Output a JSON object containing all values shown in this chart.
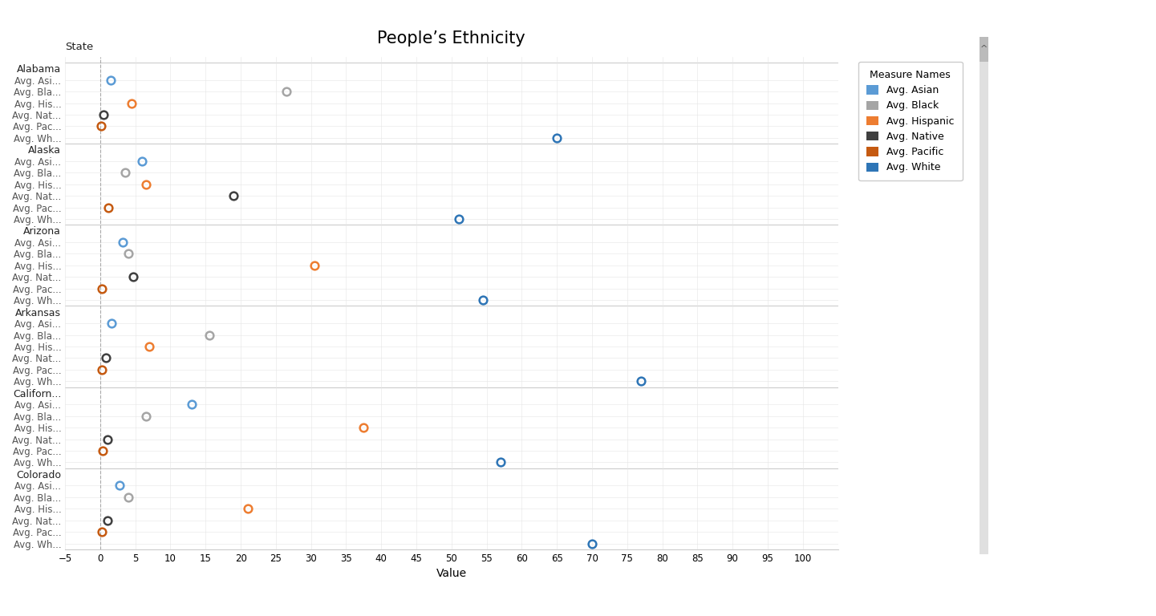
{
  "title": "People’s Ethnicity",
  "xlabel": "Value",
  "xlim": [
    -5,
    105
  ],
  "xticks": [
    -5,
    0,
    5,
    10,
    15,
    20,
    25,
    30,
    35,
    40,
    45,
    50,
    55,
    60,
    65,
    70,
    75,
    80,
    85,
    90,
    95,
    100
  ],
  "measures": [
    "Avg. Asian",
    "Avg. Black",
    "Avg. Hispanic",
    "Avg. Native",
    "Avg. Pacific",
    "Avg. White"
  ],
  "measure_labels": [
    "Avg. Asi...",
    "Avg. Bla...",
    "Avg. His...",
    "Avg. Nat...",
    "Avg. Pac...",
    "Avg. Wh..."
  ],
  "colors": {
    "Avg. Asian": "#5B9BD5",
    "Avg. Black": "#A5A5A5",
    "Avg. Hispanic": "#ED7D31",
    "Avg. Native": "#404040",
    "Avg. Pacific": "#C55A11",
    "Avg. White": "#2E75B6"
  },
  "data": {
    "Alabama": {
      "Avg. Asian": 1.5,
      "Avg. Black": 26.5,
      "Avg. Hispanic": 4.5,
      "Avg. Native": 0.5,
      "Avg. Pacific": 0.1,
      "Avg. White": 65.0
    },
    "Alaska": {
      "Avg. Asian": 6.0,
      "Avg. Black": 3.5,
      "Avg. Hispanic": 6.5,
      "Avg. Native": 19.0,
      "Avg. Pacific": 1.2,
      "Avg. White": 51.0
    },
    "Arizona": {
      "Avg. Asian": 3.2,
      "Avg. Black": 4.0,
      "Avg. Hispanic": 30.5,
      "Avg. Native": 4.7,
      "Avg. Pacific": 0.2,
      "Avg. White": 54.5
    },
    "Arkansas": {
      "Avg. Asian": 1.6,
      "Avg. Black": 15.5,
      "Avg. Hispanic": 7.0,
      "Avg. Native": 0.8,
      "Avg. Pacific": 0.2,
      "Avg. White": 77.0
    },
    "Californ...": {
      "Avg. Asian": 13.0,
      "Avg. Black": 6.5,
      "Avg. Hispanic": 37.5,
      "Avg. Native": 1.0,
      "Avg. Pacific": 0.4,
      "Avg. White": 57.0
    },
    "Colorado": {
      "Avg. Asian": 2.8,
      "Avg. Black": 4.0,
      "Avg. Hispanic": 21.0,
      "Avg. Native": 1.0,
      "Avg. Pacific": 0.2,
      "Avg. White": 70.0
    }
  },
  "background_color": "#FFFFFF",
  "grid_color": "#E5E5E5",
  "separator_color": "#CCCCCC",
  "title_fontsize": 15,
  "label_fontsize": 8.5,
  "axis_label_fontsize": 10,
  "marker_size": 7
}
